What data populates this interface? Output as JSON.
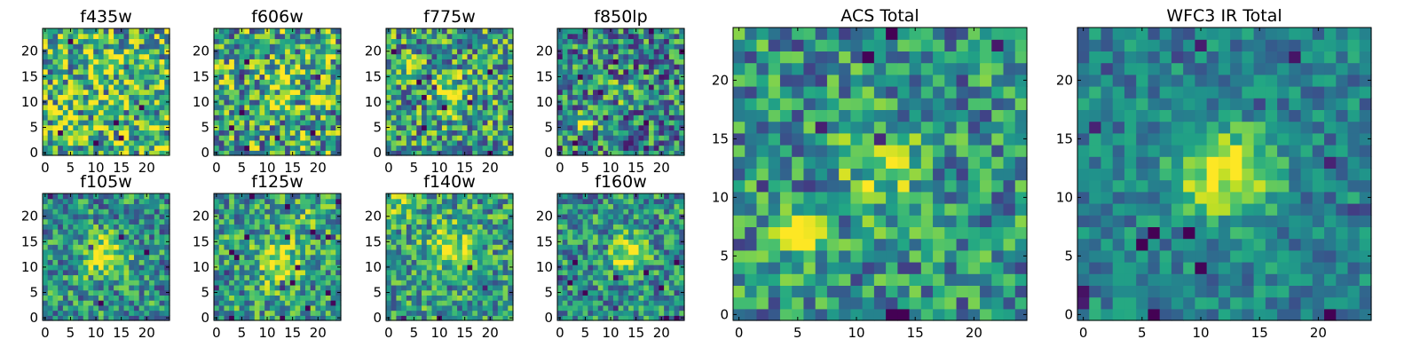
{
  "chart_data": [
    {
      "type": "heatmap",
      "title": "f435w",
      "grid_size": 25,
      "x_ticks": [
        0,
        5,
        10,
        15,
        20
      ],
      "y_ticks": [
        0,
        5,
        10,
        15,
        20
      ],
      "colormap": "viridis",
      "grid": false,
      "seed": 11,
      "peaks": [
        [
          12,
          18,
          0.15,
          2.0
        ]
      ],
      "noise": 0.55,
      "base": 0.66,
      "pixels": []
    },
    {
      "type": "heatmap",
      "title": "f606w",
      "grid_size": 25,
      "x_ticks": [
        0,
        5,
        10,
        15,
        20
      ],
      "y_ticks": [
        0,
        5,
        10,
        15,
        20
      ],
      "colormap": "viridis",
      "grid": false,
      "seed": 23,
      "peaks": [
        [
          12,
          12,
          0.25,
          2.5
        ],
        [
          19,
          12,
          0.2,
          1.5
        ]
      ],
      "noise": 0.55,
      "base": 0.6,
      "pixels": []
    },
    {
      "type": "heatmap",
      "title": "f775w",
      "grid_size": 25,
      "x_ticks": [
        0,
        5,
        10,
        15,
        20
      ],
      "y_ticks": [
        0,
        5,
        10,
        15,
        20
      ],
      "colormap": "viridis",
      "grid": false,
      "seed": 37,
      "peaks": [
        [
          12,
          12,
          0.35,
          2.5
        ],
        [
          4,
          17,
          0.3,
          1.2
        ]
      ],
      "noise": 0.5,
      "base": 0.55,
      "pixels": []
    },
    {
      "type": "heatmap",
      "title": "f850lp",
      "grid_size": 25,
      "x_ticks": [
        0,
        5,
        10,
        15,
        20
      ],
      "y_ticks": [
        0,
        5,
        10,
        15,
        20
      ],
      "colormap": "viridis",
      "grid": false,
      "seed": 41,
      "peaks": [
        [
          5,
          6,
          0.55,
          1.2
        ],
        [
          12,
          12,
          0.15,
          2.0
        ]
      ],
      "noise": 0.5,
      "base": 0.45,
      "pixels": []
    },
    {
      "type": "heatmap",
      "title": "f105w",
      "grid_size": 25,
      "x_ticks": [
        0,
        5,
        10,
        15,
        20
      ],
      "y_ticks": [
        0,
        5,
        10,
        15,
        20
      ],
      "colormap": "viridis",
      "grid": false,
      "seed": 53,
      "peaks": [
        [
          12,
          12,
          0.5,
          3.0
        ]
      ],
      "noise": 0.4,
      "base": 0.5,
      "pixels": []
    },
    {
      "type": "heatmap",
      "title": "f125w",
      "grid_size": 25,
      "x_ticks": [
        0,
        5,
        10,
        15,
        20
      ],
      "y_ticks": [
        0,
        5,
        10,
        15,
        20
      ],
      "colormap": "viridis",
      "grid": false,
      "seed": 67,
      "peaks": [
        [
          12,
          11,
          0.45,
          3.0
        ],
        [
          19,
          20,
          0.2,
          2.0
        ]
      ],
      "noise": 0.4,
      "base": 0.55,
      "pixels": []
    },
    {
      "type": "heatmap",
      "title": "f140w",
      "grid_size": 25,
      "x_ticks": [
        0,
        5,
        10,
        15,
        20
      ],
      "y_ticks": [
        0,
        5,
        10,
        15,
        20
      ],
      "colormap": "viridis",
      "grid": false,
      "seed": 79,
      "peaks": [
        [
          12,
          14,
          0.4,
          3.0
        ],
        [
          3,
          22,
          0.3,
          2.0
        ]
      ],
      "noise": 0.4,
      "base": 0.55,
      "pixels": []
    },
    {
      "type": "heatmap",
      "title": "f160w",
      "grid_size": 25,
      "x_ticks": [
        0,
        5,
        10,
        15,
        20
      ],
      "y_ticks": [
        0,
        5,
        10,
        15,
        20
      ],
      "colormap": "viridis",
      "grid": false,
      "seed": 83,
      "peaks": [
        [
          13,
          13,
          0.45,
          2.5
        ]
      ],
      "noise": 0.4,
      "base": 0.5,
      "pixels": []
    },
    {
      "type": "heatmap",
      "title": "ACS Total",
      "grid_size": 25,
      "x_ticks": [
        0,
        5,
        10,
        15,
        20
      ],
      "y_ticks": [
        0,
        5,
        10,
        15,
        20
      ],
      "colormap": "viridis",
      "grid": false,
      "seed": 97,
      "peaks": [
        [
          5,
          7,
          0.6,
          1.3
        ],
        [
          12,
          12,
          0.3,
          2.5
        ]
      ],
      "noise": 0.4,
      "base": 0.5,
      "pixels": []
    },
    {
      "type": "heatmap",
      "title": "WFC3 IR Total",
      "grid_size": 25,
      "x_ticks": [
        0,
        5,
        10,
        15,
        20
      ],
      "y_ticks": [
        0,
        5,
        10,
        15,
        20
      ],
      "colormap": "viridis",
      "grid": false,
      "seed": 101,
      "peaks": [
        [
          12,
          12,
          0.55,
          2.8
        ]
      ],
      "noise": 0.25,
      "base": 0.45,
      "pixels": []
    }
  ]
}
